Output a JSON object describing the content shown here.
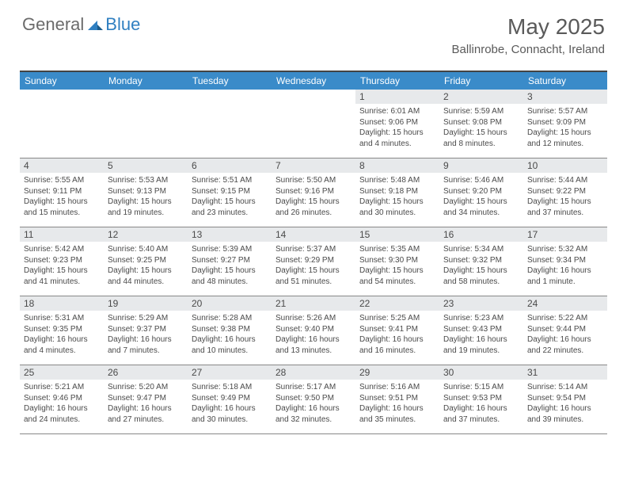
{
  "logo": {
    "part1": "General",
    "part2": "Blue"
  },
  "title": "May 2025",
  "location": "Ballinrobe, Connacht, Ireland",
  "colors": {
    "header_bg": "#3a8bc9",
    "header_text": "#ffffff",
    "daynum_bg": "#e7e9eb",
    "text": "#4a4a4a",
    "logo_gray": "#6b6b6b",
    "logo_blue": "#2f7fc1",
    "border": "#888888",
    "top_border": "#444444"
  },
  "days_of_week": [
    "Sunday",
    "Monday",
    "Tuesday",
    "Wednesday",
    "Thursday",
    "Friday",
    "Saturday"
  ],
  "weeks": [
    [
      {
        "n": "",
        "sunrise": "",
        "sunset": "",
        "daylight": "",
        "empty": true
      },
      {
        "n": "",
        "sunrise": "",
        "sunset": "",
        "daylight": "",
        "empty": true
      },
      {
        "n": "",
        "sunrise": "",
        "sunset": "",
        "daylight": "",
        "empty": true
      },
      {
        "n": "",
        "sunrise": "",
        "sunset": "",
        "daylight": "",
        "empty": true
      },
      {
        "n": "1",
        "sunrise": "Sunrise: 6:01 AM",
        "sunset": "Sunset: 9:06 PM",
        "daylight": "Daylight: 15 hours and 4 minutes."
      },
      {
        "n": "2",
        "sunrise": "Sunrise: 5:59 AM",
        "sunset": "Sunset: 9:08 PM",
        "daylight": "Daylight: 15 hours and 8 minutes."
      },
      {
        "n": "3",
        "sunrise": "Sunrise: 5:57 AM",
        "sunset": "Sunset: 9:09 PM",
        "daylight": "Daylight: 15 hours and 12 minutes."
      }
    ],
    [
      {
        "n": "4",
        "sunrise": "Sunrise: 5:55 AM",
        "sunset": "Sunset: 9:11 PM",
        "daylight": "Daylight: 15 hours and 15 minutes."
      },
      {
        "n": "5",
        "sunrise": "Sunrise: 5:53 AM",
        "sunset": "Sunset: 9:13 PM",
        "daylight": "Daylight: 15 hours and 19 minutes."
      },
      {
        "n": "6",
        "sunrise": "Sunrise: 5:51 AM",
        "sunset": "Sunset: 9:15 PM",
        "daylight": "Daylight: 15 hours and 23 minutes."
      },
      {
        "n": "7",
        "sunrise": "Sunrise: 5:50 AM",
        "sunset": "Sunset: 9:16 PM",
        "daylight": "Daylight: 15 hours and 26 minutes."
      },
      {
        "n": "8",
        "sunrise": "Sunrise: 5:48 AM",
        "sunset": "Sunset: 9:18 PM",
        "daylight": "Daylight: 15 hours and 30 minutes."
      },
      {
        "n": "9",
        "sunrise": "Sunrise: 5:46 AM",
        "sunset": "Sunset: 9:20 PM",
        "daylight": "Daylight: 15 hours and 34 minutes."
      },
      {
        "n": "10",
        "sunrise": "Sunrise: 5:44 AM",
        "sunset": "Sunset: 9:22 PM",
        "daylight": "Daylight: 15 hours and 37 minutes."
      }
    ],
    [
      {
        "n": "11",
        "sunrise": "Sunrise: 5:42 AM",
        "sunset": "Sunset: 9:23 PM",
        "daylight": "Daylight: 15 hours and 41 minutes."
      },
      {
        "n": "12",
        "sunrise": "Sunrise: 5:40 AM",
        "sunset": "Sunset: 9:25 PM",
        "daylight": "Daylight: 15 hours and 44 minutes."
      },
      {
        "n": "13",
        "sunrise": "Sunrise: 5:39 AM",
        "sunset": "Sunset: 9:27 PM",
        "daylight": "Daylight: 15 hours and 48 minutes."
      },
      {
        "n": "14",
        "sunrise": "Sunrise: 5:37 AM",
        "sunset": "Sunset: 9:29 PM",
        "daylight": "Daylight: 15 hours and 51 minutes."
      },
      {
        "n": "15",
        "sunrise": "Sunrise: 5:35 AM",
        "sunset": "Sunset: 9:30 PM",
        "daylight": "Daylight: 15 hours and 54 minutes."
      },
      {
        "n": "16",
        "sunrise": "Sunrise: 5:34 AM",
        "sunset": "Sunset: 9:32 PM",
        "daylight": "Daylight: 15 hours and 58 minutes."
      },
      {
        "n": "17",
        "sunrise": "Sunrise: 5:32 AM",
        "sunset": "Sunset: 9:34 PM",
        "daylight": "Daylight: 16 hours and 1 minute."
      }
    ],
    [
      {
        "n": "18",
        "sunrise": "Sunrise: 5:31 AM",
        "sunset": "Sunset: 9:35 PM",
        "daylight": "Daylight: 16 hours and 4 minutes."
      },
      {
        "n": "19",
        "sunrise": "Sunrise: 5:29 AM",
        "sunset": "Sunset: 9:37 PM",
        "daylight": "Daylight: 16 hours and 7 minutes."
      },
      {
        "n": "20",
        "sunrise": "Sunrise: 5:28 AM",
        "sunset": "Sunset: 9:38 PM",
        "daylight": "Daylight: 16 hours and 10 minutes."
      },
      {
        "n": "21",
        "sunrise": "Sunrise: 5:26 AM",
        "sunset": "Sunset: 9:40 PM",
        "daylight": "Daylight: 16 hours and 13 minutes."
      },
      {
        "n": "22",
        "sunrise": "Sunrise: 5:25 AM",
        "sunset": "Sunset: 9:41 PM",
        "daylight": "Daylight: 16 hours and 16 minutes."
      },
      {
        "n": "23",
        "sunrise": "Sunrise: 5:23 AM",
        "sunset": "Sunset: 9:43 PM",
        "daylight": "Daylight: 16 hours and 19 minutes."
      },
      {
        "n": "24",
        "sunrise": "Sunrise: 5:22 AM",
        "sunset": "Sunset: 9:44 PM",
        "daylight": "Daylight: 16 hours and 22 minutes."
      }
    ],
    [
      {
        "n": "25",
        "sunrise": "Sunrise: 5:21 AM",
        "sunset": "Sunset: 9:46 PM",
        "daylight": "Daylight: 16 hours and 24 minutes."
      },
      {
        "n": "26",
        "sunrise": "Sunrise: 5:20 AM",
        "sunset": "Sunset: 9:47 PM",
        "daylight": "Daylight: 16 hours and 27 minutes."
      },
      {
        "n": "27",
        "sunrise": "Sunrise: 5:18 AM",
        "sunset": "Sunset: 9:49 PM",
        "daylight": "Daylight: 16 hours and 30 minutes."
      },
      {
        "n": "28",
        "sunrise": "Sunrise: 5:17 AM",
        "sunset": "Sunset: 9:50 PM",
        "daylight": "Daylight: 16 hours and 32 minutes."
      },
      {
        "n": "29",
        "sunrise": "Sunrise: 5:16 AM",
        "sunset": "Sunset: 9:51 PM",
        "daylight": "Daylight: 16 hours and 35 minutes."
      },
      {
        "n": "30",
        "sunrise": "Sunrise: 5:15 AM",
        "sunset": "Sunset: 9:53 PM",
        "daylight": "Daylight: 16 hours and 37 minutes."
      },
      {
        "n": "31",
        "sunrise": "Sunrise: 5:14 AM",
        "sunset": "Sunset: 9:54 PM",
        "daylight": "Daylight: 16 hours and 39 minutes."
      }
    ]
  ]
}
